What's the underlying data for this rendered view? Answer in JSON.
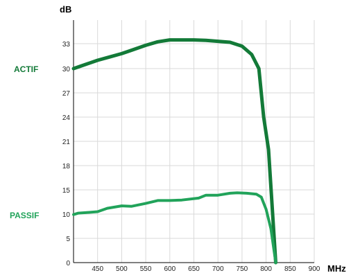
{
  "chart_data": {
    "type": "line",
    "ylabel": "dB",
    "xlabel": "MHz",
    "xlim": [
      400,
      900
    ],
    "ylim": [
      0,
      38
    ],
    "x_ticks": [
      450,
      500,
      550,
      600,
      650,
      700,
      750,
      800,
      850,
      900
    ],
    "y_ticks": [
      0,
      5,
      10,
      15,
      18,
      21,
      24,
      27,
      30,
      33
    ],
    "grid": true,
    "series": [
      {
        "name": "ACTIF",
        "color": "#137a38",
        "x": [
          400,
          425,
          450,
          475,
          500,
          520,
          550,
          575,
          600,
          625,
          650,
          675,
          700,
          725,
          750,
          770,
          785,
          795,
          805,
          820
        ],
        "y": [
          30.0,
          30.5,
          31.0,
          31.4,
          31.8,
          32.2,
          32.8,
          33.4,
          33.8,
          33.8,
          33.8,
          33.7,
          33.5,
          33.3,
          32.7,
          31.7,
          30.0,
          24.0,
          20.0,
          0
        ]
      },
      {
        "name": "PASSIF",
        "color": "#21a35a",
        "x": [
          400,
          410,
          425,
          450,
          470,
          500,
          520,
          550,
          575,
          600,
          625,
          660,
          675,
          700,
          725,
          740,
          760,
          780,
          790,
          800,
          810,
          820
        ],
        "y": [
          9.9,
          10.2,
          10.3,
          10.5,
          11.2,
          11.7,
          11.6,
          12.2,
          12.8,
          12.8,
          12.9,
          13.3,
          13.9,
          13.9,
          14.3,
          14.4,
          14.3,
          14.1,
          13.5,
          11.0,
          7.0,
          0
        ]
      }
    ]
  }
}
